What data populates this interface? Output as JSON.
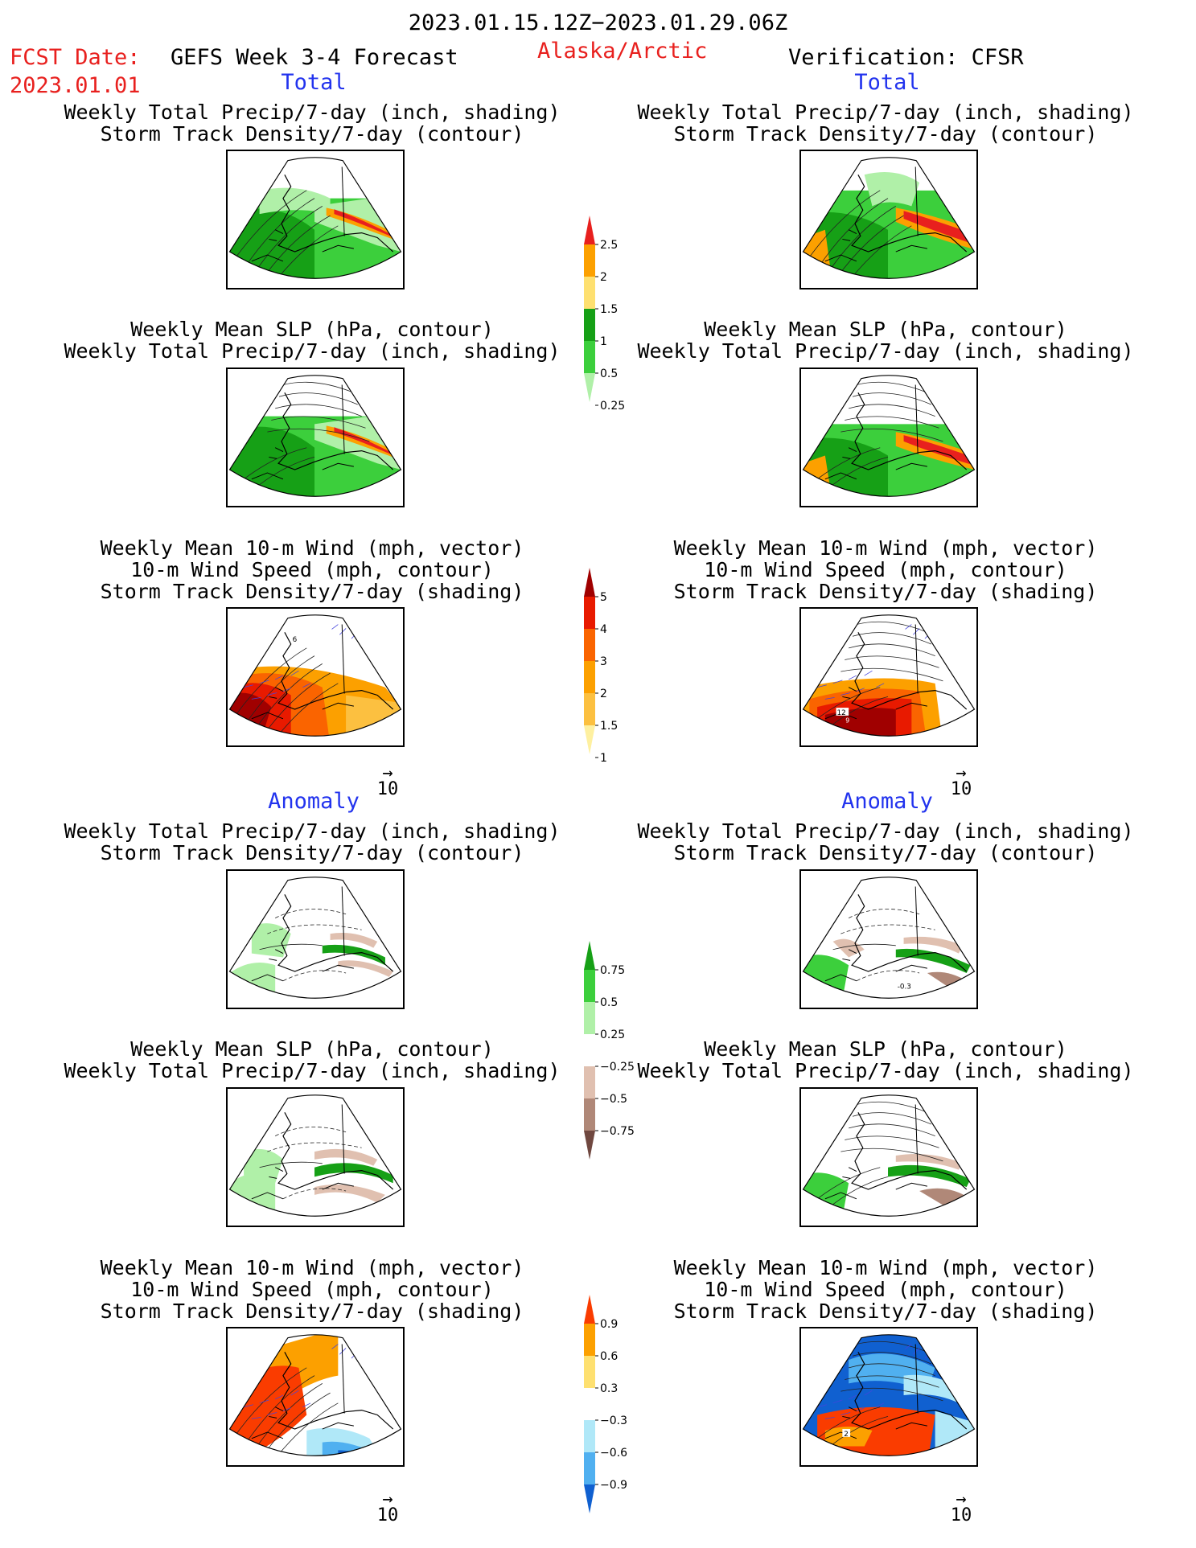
{
  "header": {
    "date_range": "2023.01.15.12Z−2023.01.29.06Z",
    "fcst_label": "FCST Date:",
    "fcst_date": "2023.01.01",
    "model": "GEFS Week 3-4 Forecast",
    "region": "Alaska/Arctic",
    "verification": "Verification: CFSR"
  },
  "sections": {
    "total": "Total",
    "anomaly": "Anomaly"
  },
  "panels": [
    {
      "id": "p1",
      "title": "Weekly Total Precip/7-day (inch, shading)\nStorm Track Density/7-day (contour)"
    },
    {
      "id": "p2",
      "title": "Weekly Total Precip/7-day (inch, shading)\nStorm Track Density/7-day (contour)"
    },
    {
      "id": "p3",
      "title": "Weekly Mean SLP (hPa, contour)\nWeekly Total Precip/7-day (inch, shading)"
    },
    {
      "id": "p4",
      "title": "Weekly Mean SLP (hPa, contour)\nWeekly Total Precip/7-day (inch, shading)"
    },
    {
      "id": "p5",
      "title": "Weekly Mean 10-m Wind (mph, vector)\n10-m Wind Speed (mph, contour)\nStorm Track Density/7-day (shading)"
    },
    {
      "id": "p6",
      "title": "Weekly Mean 10-m Wind (mph, vector)\n10-m Wind Speed (mph, contour)\nStorm Track Density/7-day (shading)"
    },
    {
      "id": "p7",
      "title": "Weekly Total Precip/7-day (inch, shading)\nStorm Track Density/7-day (contour)"
    },
    {
      "id": "p8",
      "title": "Weekly Total Precip/7-day (inch, shading)\nStorm Track Density/7-day (contour)"
    },
    {
      "id": "p9",
      "title": "Weekly Mean SLP (hPa, contour)\nWeekly Total Precip/7-day (inch, shading)"
    },
    {
      "id": "p10",
      "title": "Weekly Mean SLP (hPa, contour)\nWeekly Total Precip/7-day (inch, shading)"
    },
    {
      "id": "p11",
      "title": "Weekly Mean 10-m Wind (mph, vector)\n10-m Wind Speed (mph, contour)\nStorm Track Density/7-day (shading)"
    },
    {
      "id": "p12",
      "title": "Weekly Mean 10-m Wind (mph, vector)\n10-m Wind Speed (mph, contour)\nStorm Track Density/7-day (shading)"
    }
  ],
  "map_labels": {
    "p5_contour": "6",
    "p6_contour_a": "12",
    "p6_contour_b": "9",
    "p8_contour": "-0.3",
    "p12_contour": "2"
  },
  "vector_ref": "10",
  "colorbars": [
    {
      "id": "cb_precip_total",
      "labels": [
        "2.5",
        "2",
        "1.5",
        "1",
        "0.5",
        "0.25"
      ],
      "colors": [
        "#e8201e",
        "#fca000",
        "#fee070",
        "#16a016",
        "#3ccf3c",
        "#b0f0a8"
      ]
    },
    {
      "id": "cb_storm_total",
      "labels": [
        "5",
        "4",
        "3",
        "2",
        "1.5",
        "1"
      ],
      "colors": [
        "#a00000",
        "#e81a00",
        "#fa6400",
        "#fca000",
        "#fcc040",
        "#fef0a0"
      ]
    },
    {
      "id": "cb_precip_anom",
      "labels": [
        "0.75",
        "0.5",
        "0.25",
        "−0.25",
        "−0.5",
        "−0.75"
      ],
      "colors": [
        "#16a016",
        "#3ccf3c",
        "#b0f0a8",
        "#ffffff",
        "#e0c0b0",
        "#b08878",
        "#704840"
      ]
    },
    {
      "id": "cb_storm_anom",
      "labels": [
        "0.9",
        "0.6",
        "0.3",
        "−0.3",
        "−0.6",
        "−0.9"
      ],
      "colors": [
        "#fa3c00",
        "#fca000",
        "#fee070",
        "#ffffff",
        "#b0e8f8",
        "#50b0f0",
        "#1060d0"
      ]
    }
  ]
}
